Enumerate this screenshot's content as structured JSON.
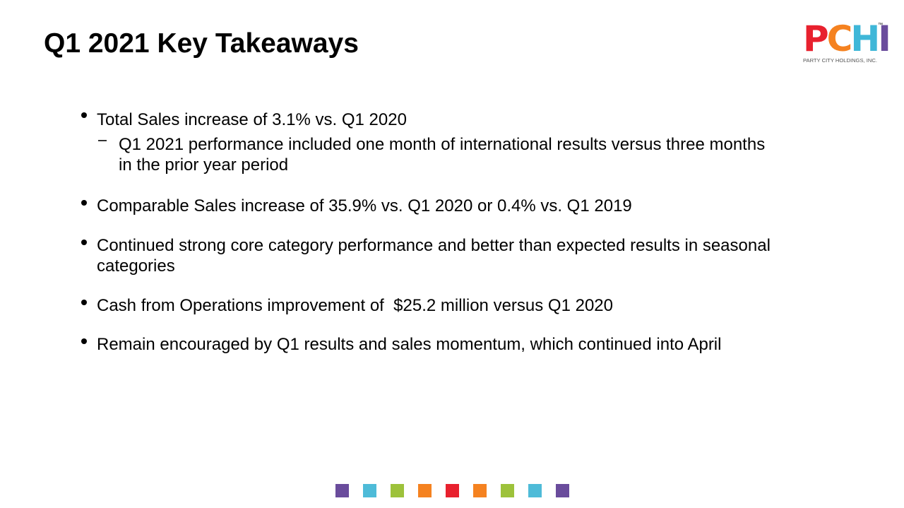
{
  "header": {
    "title": "Q1 2021 Key Takeaways",
    "logo": {
      "letters": [
        "P",
        "C",
        "H",
        "I"
      ],
      "trademark": "™",
      "tagline": "PARTY CITY HOLDINGS, INC."
    }
  },
  "bullets": [
    {
      "text": "Total Sales increase of 3.1% vs. Q1 2020",
      "sub": [
        "Q1 2021 performance included one month of international results versus three months in the prior year period"
      ]
    },
    {
      "text": "Comparable Sales increase of 35.9% vs. Q1 2020 or 0.4% vs. Q1 2019"
    },
    {
      "text": "Continued strong core category performance and better than expected results in seasonal categories"
    },
    {
      "text": "Cash from Operations improvement of  $25.2 million versus Q1 2020"
    },
    {
      "text": "Remain encouraged by Q1 results and sales momentum, which continued into April"
    }
  ]
}
